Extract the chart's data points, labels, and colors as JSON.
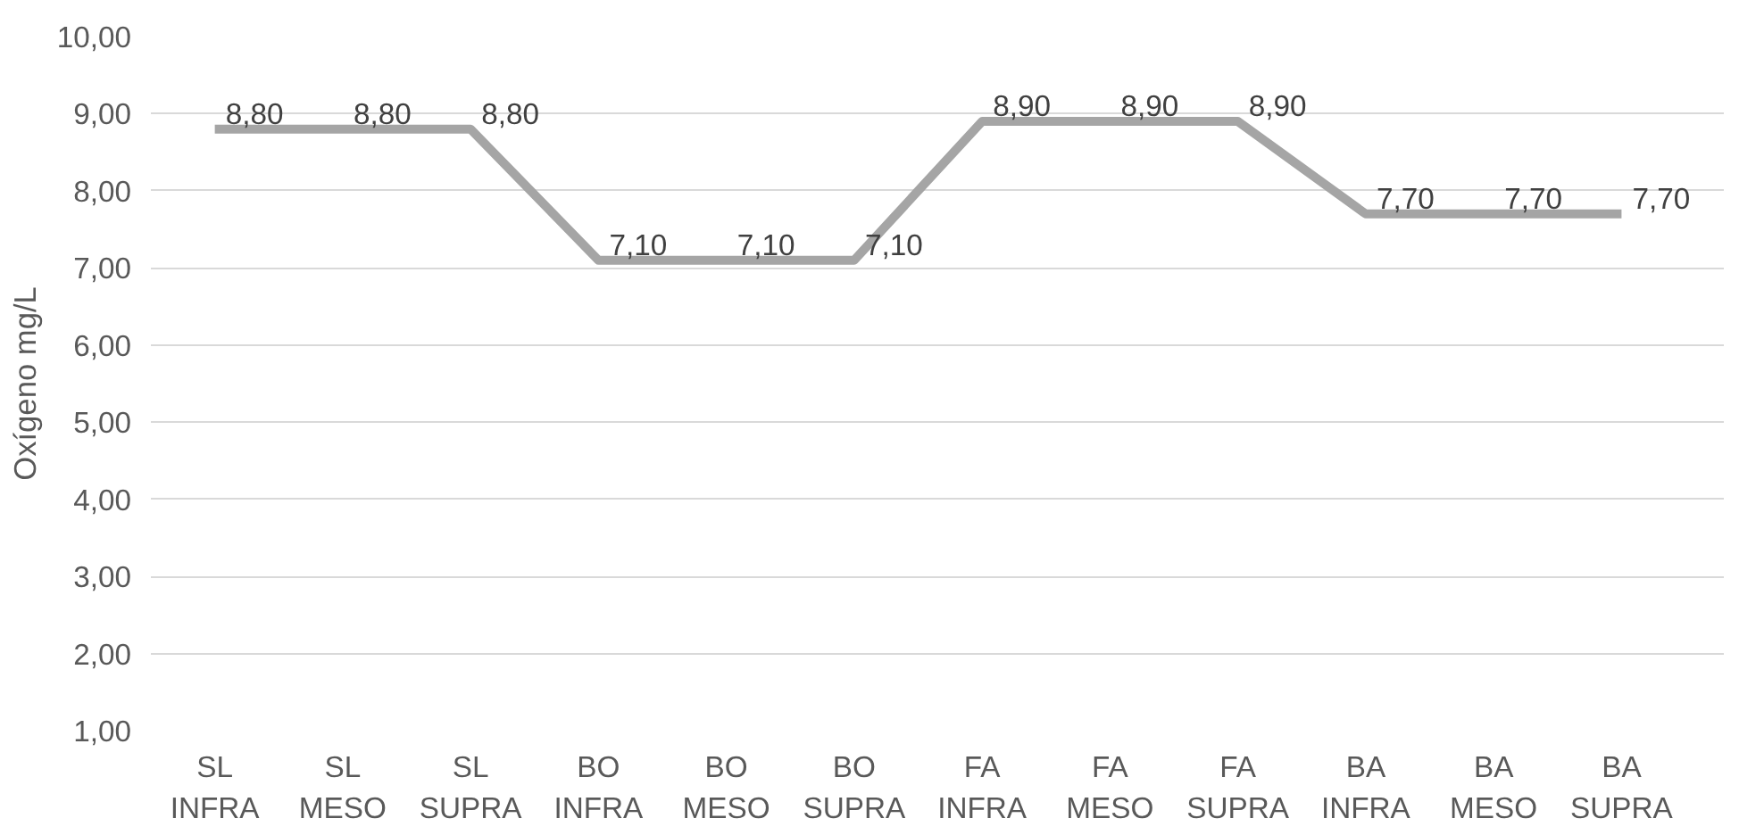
{
  "chart_data": {
    "type": "line",
    "ylabel": "Oxígeno mg/L",
    "categories": [
      "SL INFRA",
      "SL MESO",
      "SL SUPRA",
      "BO INFRA",
      "BO MESO",
      "BO SUPRA",
      "FA INFRA",
      "FA MESO",
      "FA SUPRA",
      "BA INFRA",
      "BA MESO",
      "BA SUPRA"
    ],
    "series": [
      {
        "color": "#a5a5a5",
        "values": [
          8.8,
          8.8,
          8.8,
          7.1,
          7.1,
          7.1,
          8.9,
          8.9,
          8.9,
          7.7,
          7.7,
          7.7
        ],
        "value_labels": [
          "8,80",
          "8,80",
          "8,80",
          "7,10",
          "7,10",
          "7,10",
          "8,90",
          "8,90",
          "8,90",
          "7,70",
          "7,70",
          "7,70"
        ]
      }
    ],
    "ylim": [
      1,
      10
    ],
    "yticks": [
      {
        "value": 1,
        "label": "1,00"
      },
      {
        "value": 2,
        "label": "2,00"
      },
      {
        "value": 3,
        "label": "3,00"
      },
      {
        "value": 4,
        "label": "4,00"
      },
      {
        "value": 5,
        "label": "5,00"
      },
      {
        "value": 6,
        "label": "6,00"
      },
      {
        "value": 7,
        "label": "7,00"
      },
      {
        "value": 8,
        "label": "8,00"
      },
      {
        "value": 9,
        "label": "9,00"
      },
      {
        "value": 10,
        "label": "10,00"
      }
    ],
    "grid": "y",
    "marker": "none",
    "line_style": "solid"
  }
}
